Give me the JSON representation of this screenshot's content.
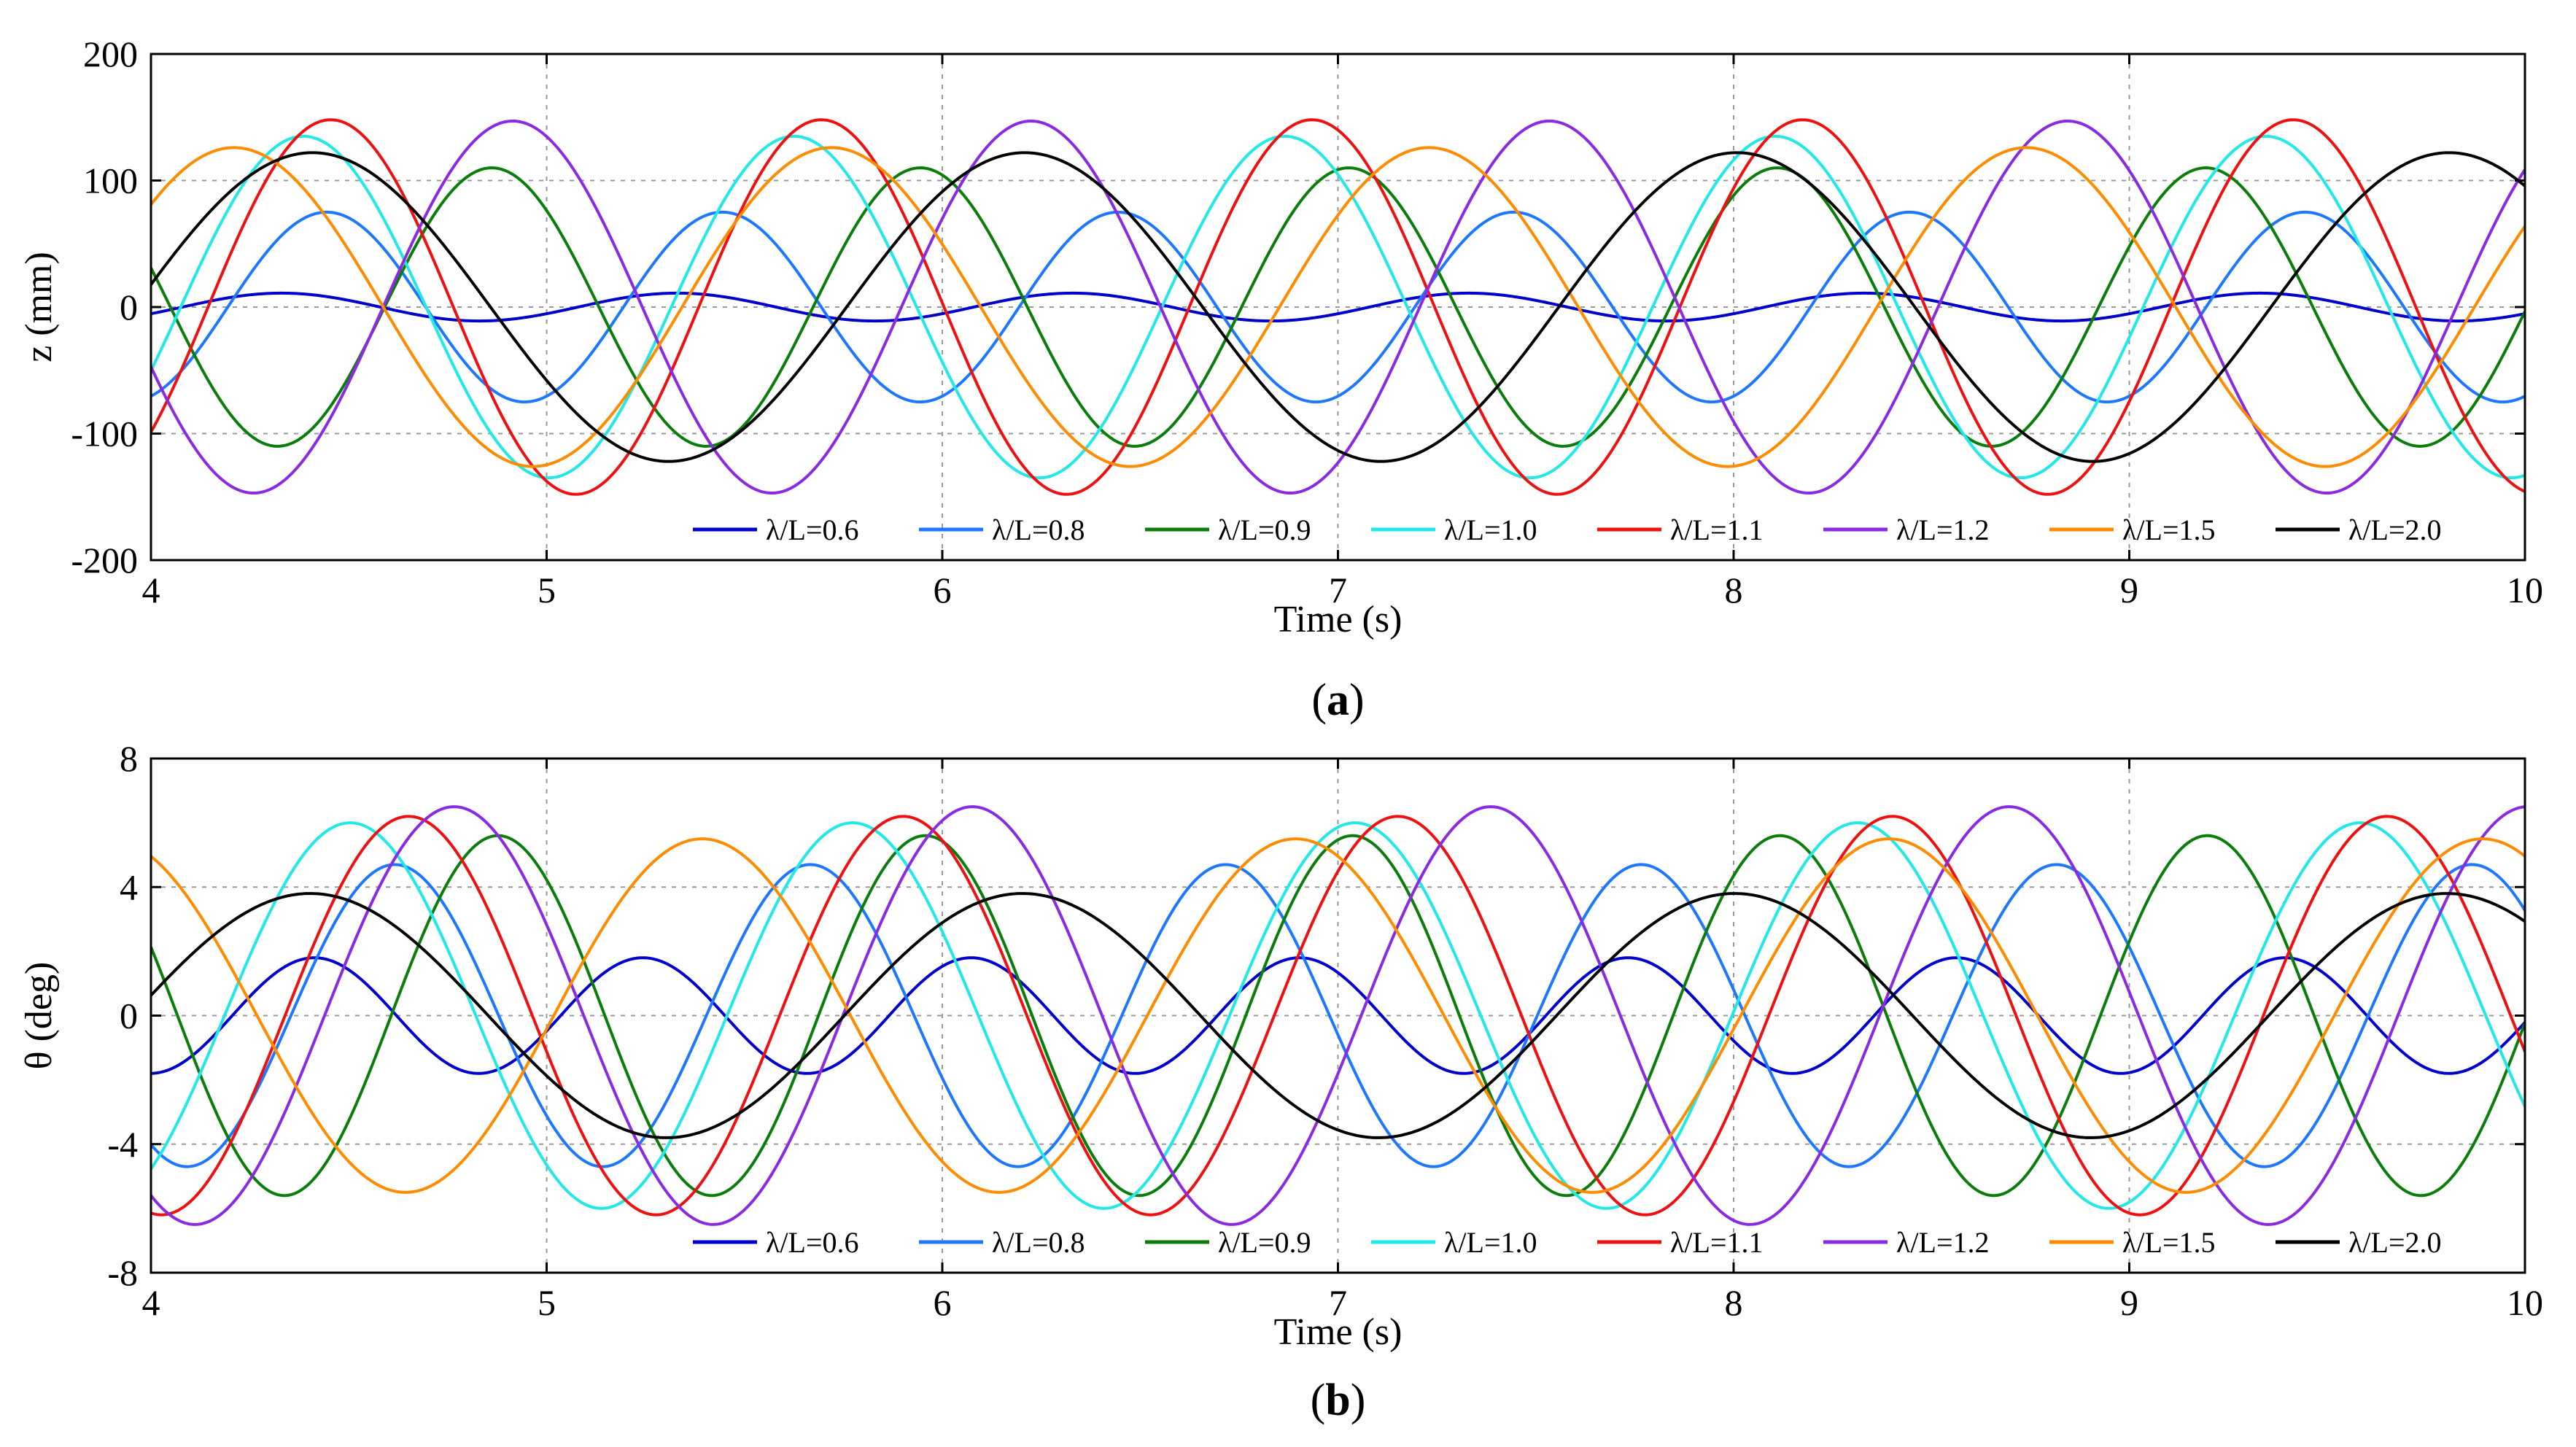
{
  "chart_data": [
    {
      "type": "line",
      "caption_letter": "a",
      "caption_open": "(",
      "caption_close": ")",
      "xlabel": "Time (s)",
      "ylabel": "z (mm)",
      "xlim": [
        4,
        10
      ],
      "ylim": [
        -200,
        200
      ],
      "xticks": [
        4,
        5,
        6,
        7,
        8,
        9,
        10
      ],
      "xtick_labels": [
        "4",
        "5",
        "6",
        "7",
        "8",
        "9",
        "10"
      ],
      "yticks": [
        -200,
        -100,
        0,
        100,
        200
      ],
      "ytick_labels": [
        "-200",
        "-100",
        "0",
        "100",
        "200"
      ],
      "grid": true,
      "legend_position": "bottom",
      "series": [
        {
          "name": "λ/L=0.6",
          "color": "#0000cd",
          "amplitude": 11,
          "period": 1.0,
          "phase": -0.5,
          "x_range": [
            4,
            10
          ]
        },
        {
          "name": "λ/L=0.8",
          "color": "#1e78ff",
          "amplitude": 75,
          "period": 1.0,
          "phase": -1.22,
          "x_range": [
            4,
            10
          ]
        },
        {
          "name": "λ/L=0.9",
          "color": "#0a7d0a",
          "amplitude": 110,
          "period": 1.083,
          "phase": -1.5,
          "x_range": [
            4,
            10
          ]
        },
        {
          "name": "λ/L=1.0",
          "color": "#22e8e8",
          "amplitude": 135,
          "period": 1.24,
          "phase": -1.8,
          "x_range": [
            4,
            10
          ]
        },
        {
          "name": "λ/L=1.1",
          "color": "#ee1111",
          "amplitude": 148,
          "period": 1.24,
          "phase": -2.15,
          "x_range": [
            4,
            10
          ]
        },
        {
          "name": "λ/L=1.2",
          "color": "#8a2be2",
          "amplitude": 147,
          "period": 1.31,
          "phase": -3.15,
          "x_range": [
            4,
            10
          ]
        },
        {
          "name": "λ/L=1.5",
          "color": "#ff8c00",
          "amplitude": 126,
          "period": 1.51,
          "phase": -3.38,
          "x_range": [
            4,
            10
          ]
        },
        {
          "name": "λ/L=2.0",
          "color": "#000000",
          "amplitude": 122,
          "period": 1.8,
          "phase": -1.25,
          "x_range": [
            4,
            10
          ]
        }
      ]
    },
    {
      "type": "line",
      "caption_letter": "b",
      "caption_open": "(",
      "caption_close": ")",
      "xlabel": "Time (s)",
      "ylabel": "θ (deg)",
      "xlim": [
        4,
        10
      ],
      "ylim": [
        -8,
        8
      ],
      "xticks": [
        4,
        5,
        6,
        7,
        8,
        9,
        10
      ],
      "xtick_labels": [
        "4",
        "5",
        "6",
        "7",
        "8",
        "9",
        "10"
      ],
      "yticks": [
        -8,
        -4,
        0,
        4,
        8
      ],
      "ytick_labels": [
        "-8",
        "-4",
        "0",
        "4",
        "8"
      ],
      "grid": true,
      "legend_position": "bottom",
      "series": [
        {
          "name": "λ/L=0.6",
          "color": "#0000cd",
          "amplitude": 1.8,
          "period": 0.83,
          "phase": -0.42,
          "x_range": [
            4,
            10
          ]
        },
        {
          "name": "λ/L=0.8",
          "color": "#1e78ff",
          "amplitude": 4.7,
          "period": 1.05,
          "phase": -0.92,
          "x_range": [
            4,
            10
          ]
        },
        {
          "name": "λ/L=0.9",
          "color": "#0a7d0a",
          "amplitude": 5.6,
          "period": 1.08,
          "phase": -1.67,
          "x_range": [
            4,
            10
          ]
        },
        {
          "name": "λ/L=1.0",
          "color": "#22e8e8",
          "amplitude": 6.0,
          "period": 1.27,
          "phase": -1.86,
          "x_range": [
            4,
            10
          ]
        },
        {
          "name": "λ/L=1.1",
          "color": "#ee1111",
          "amplitude": 6.2,
          "period": 1.25,
          "phase": -2.96,
          "x_range": [
            4,
            10
          ]
        },
        {
          "name": "λ/L=1.2",
          "color": "#8a2be2",
          "amplitude": 6.5,
          "period": 1.31,
          "phase": -2.44,
          "x_range": [
            4,
            10
          ]
        },
        {
          "name": "λ/L=1.5",
          "color": "#ff8c00",
          "amplitude": 5.5,
          "period": 1.5,
          "phase": -2.17,
          "x_range": [
            4,
            10
          ]
        },
        {
          "name": "λ/L=2.0",
          "color": "#000000",
          "amplitude": 3.8,
          "period": 1.8,
          "phase": -1.23,
          "x_range": [
            4,
            10
          ]
        }
      ]
    }
  ]
}
